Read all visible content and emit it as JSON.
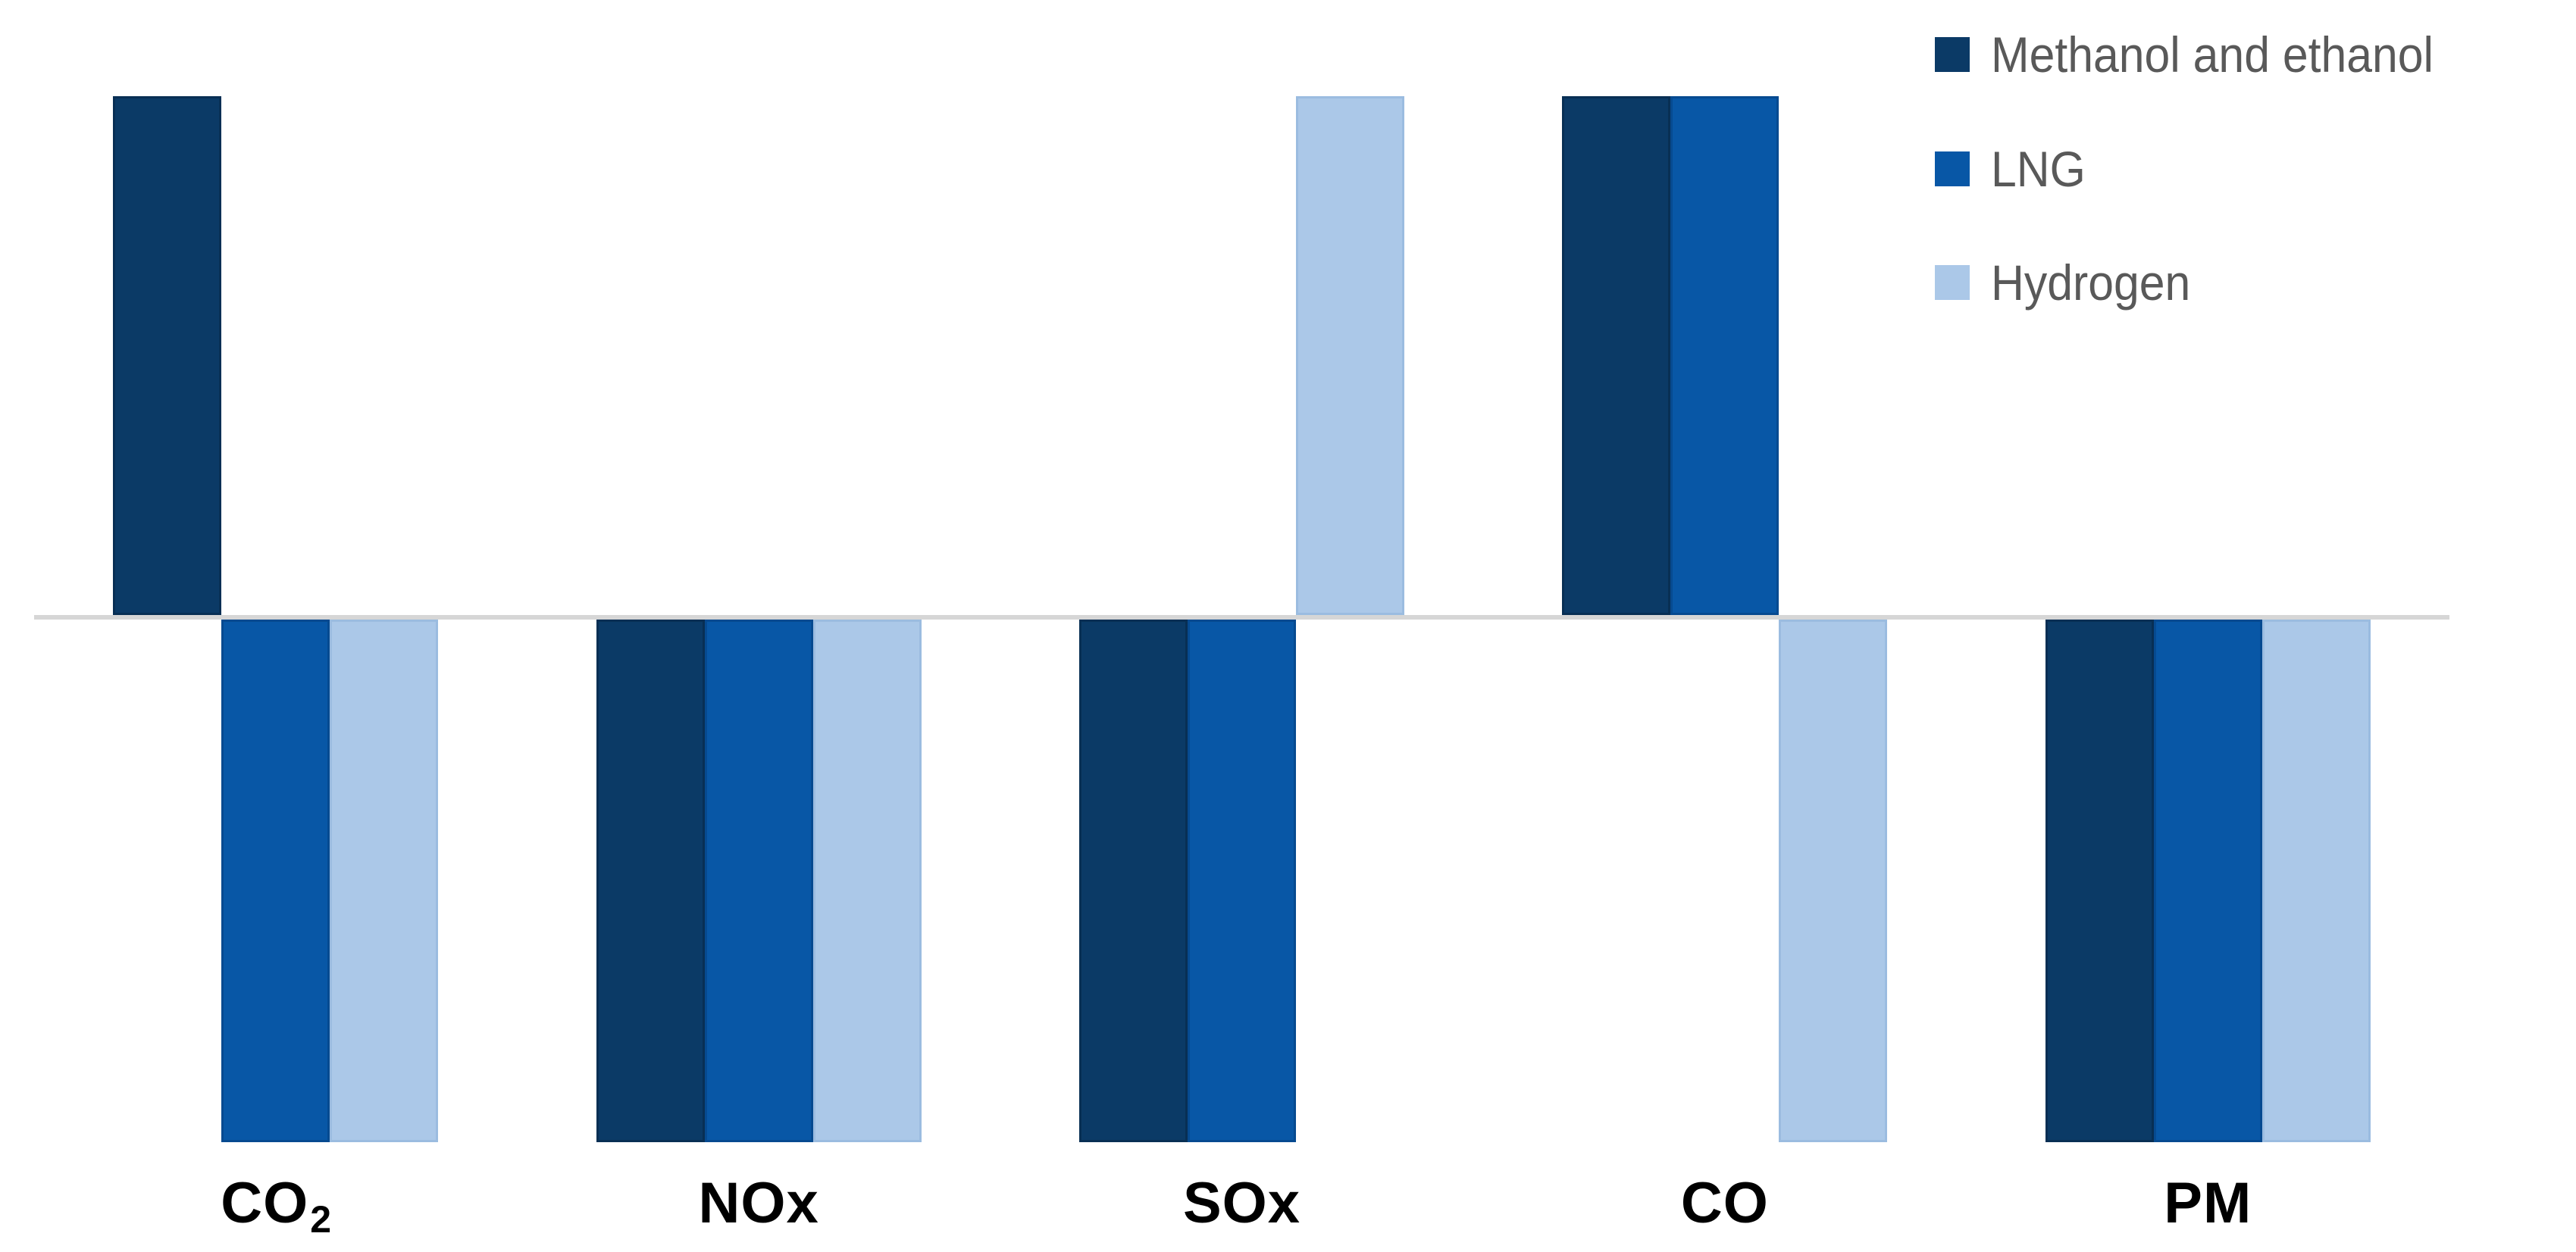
{
  "chart_data": {
    "type": "bar",
    "title": "",
    "xlabel": "",
    "ylabel": "",
    "background": "#FFFFFF",
    "grid": false,
    "value_axis_visible": false,
    "ylim": [
      -100,
      100
    ],
    "value_note": "No value axis is drawn; every bar has equal magnitude, pointing up (+100, increase) or down (-100, decrease) from the zero baseline",
    "legend_position": "top-right",
    "axis_line_color": "#D6D6D6",
    "label_color": "#000000",
    "legend_text_color": "#595959",
    "categories": [
      {
        "base": "CO",
        "sub": "2"
      },
      {
        "base": "NOx",
        "sub": ""
      },
      {
        "base": "SOx",
        "sub": ""
      },
      {
        "base": "CO",
        "sub": ""
      },
      {
        "base": "PM",
        "sub": ""
      }
    ],
    "series": [
      {
        "name": "Methanol and ethanol",
        "color": "#0B3A66",
        "border_color": "#082F54",
        "values": [
          100,
          -100,
          -100,
          100,
          -100
        ]
      },
      {
        "name": "LNG",
        "color": "#0857A6",
        "border_color": "#064A90",
        "values": [
          -100,
          -100,
          -100,
          100,
          -100
        ]
      },
      {
        "name": "Hydrogen",
        "color": "#ABC8E8",
        "border_color": "#9BBCE0",
        "values": [
          -100,
          -100,
          100,
          -100,
          -100
        ]
      }
    ]
  }
}
